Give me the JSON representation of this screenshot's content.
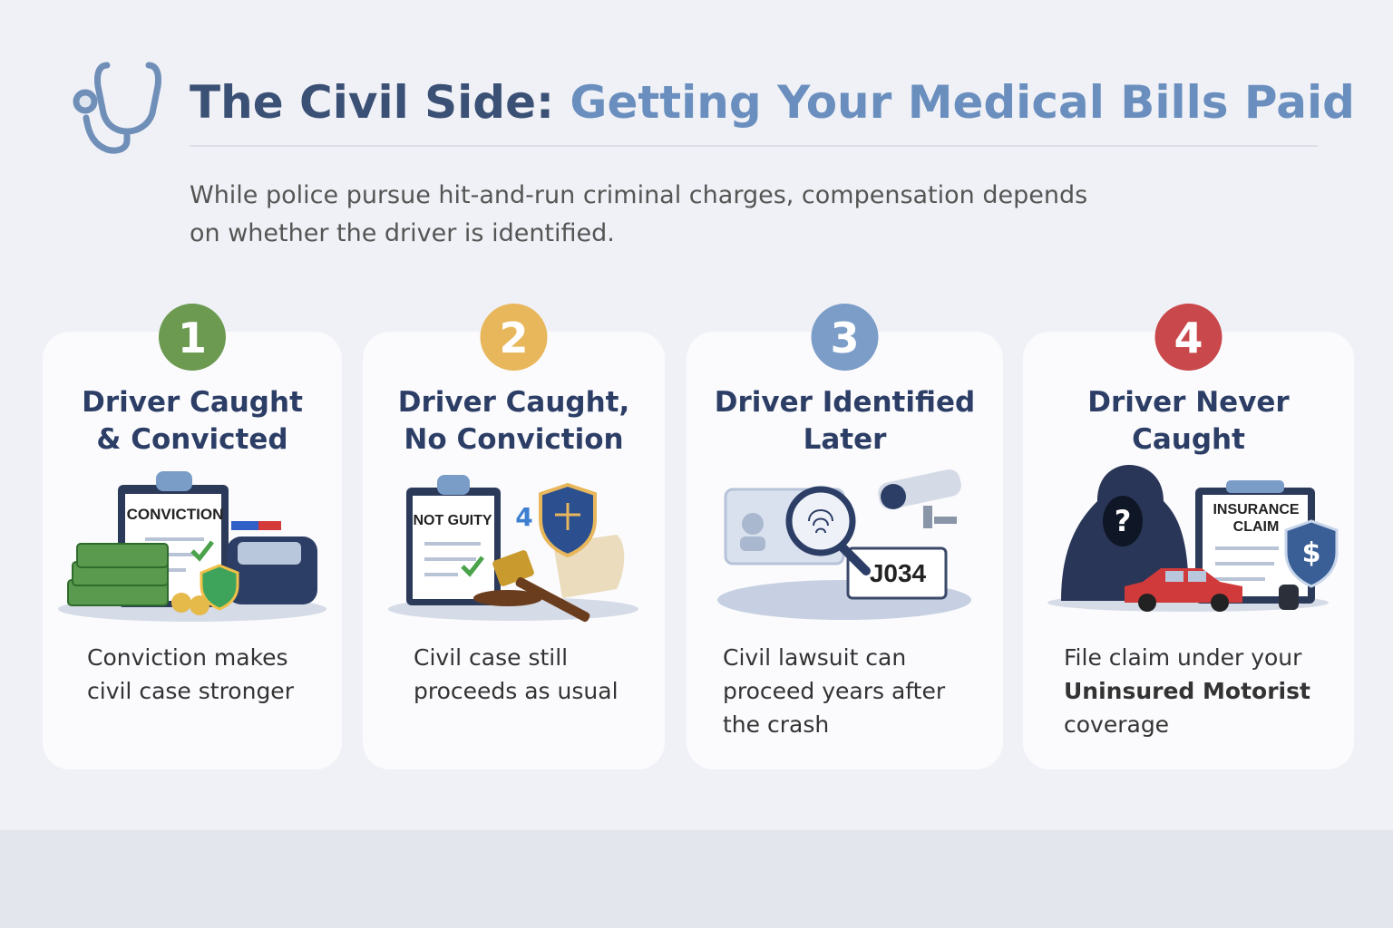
{
  "header": {
    "title_dark": "The Civil Side:",
    "title_accent": "Getting Your Medical Bills Paid",
    "subtitle_lines": [
      "While police pursue hit-and-run criminal charges, compensation depends",
      "on whether the driver is identified."
    ]
  },
  "cards": [
    {
      "number": "1",
      "color": "#6b9a50",
      "title_lines": [
        "Driver Caught",
        "& Convicted"
      ],
      "illustration_labels": [
        "CONVICTION"
      ],
      "description_lines": [
        "Conviction makes",
        "civil case stronger"
      ]
    },
    {
      "number": "2",
      "color": "#e8b75b",
      "title_lines": [
        "Driver Caught,",
        "No Conviction"
      ],
      "illustration_labels": [
        "NOT GUITY",
        "4"
      ],
      "description_lines": [
        "Civil case still",
        "proceeds as usual"
      ]
    },
    {
      "number": "3",
      "color": "#7b9dc8",
      "title_lines": [
        "Driver Identified",
        "Later"
      ],
      "illustration_labels": [
        "J034"
      ],
      "description_lines": [
        "Civil lawsuit can",
        "proceed years after",
        "the crash"
      ]
    },
    {
      "number": "4",
      "color": "#c9484b",
      "title_lines": [
        "Driver Never",
        "Caught"
      ],
      "illustration_labels": [
        "INSURANCE",
        "CLAIM",
        "?"
      ],
      "description_lines": [
        "File claim under your",
        {
          "text": "Uninsured Motorist",
          "emphasis": true
        },
        "coverage"
      ]
    }
  ]
}
